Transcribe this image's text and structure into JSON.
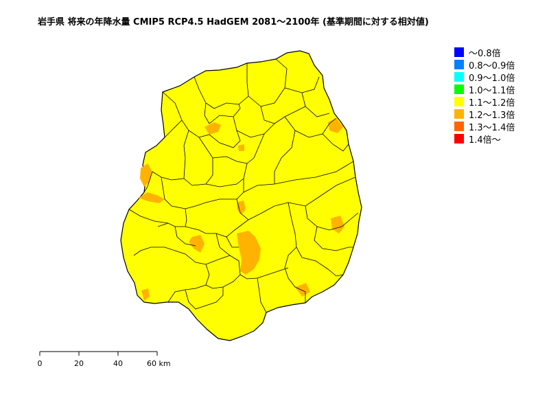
{
  "title": "岩手県 将来の年降水量 CMIP5 RCP4.5 HadGEM 2081〜2100年 (基準期間に対する相対値)",
  "legend": [
    {
      "label": "〜0.8倍",
      "color": "#0000ff"
    },
    {
      "label": "0.8〜0.9倍",
      "color": "#0080ff"
    },
    {
      "label": "0.9〜1.0倍",
      "color": "#00ffff"
    },
    {
      "label": "1.0〜1.1倍",
      "color": "#00ff00"
    },
    {
      "label": "1.1〜1.2倍",
      "color": "#ffff00"
    },
    {
      "label": "1.2〜1.3倍",
      "color": "#ffb300"
    },
    {
      "label": "1.3〜1.4倍",
      "color": "#ff6600"
    },
    {
      "label": "1.4倍〜",
      "color": "#ff0000"
    }
  ],
  "scale": {
    "ticks": [
      "0",
      "20",
      "40",
      "60 km"
    ]
  },
  "map": {
    "dominant_class": "1.1〜1.2倍",
    "secondary_class": "1.2〜1.3倍"
  }
}
